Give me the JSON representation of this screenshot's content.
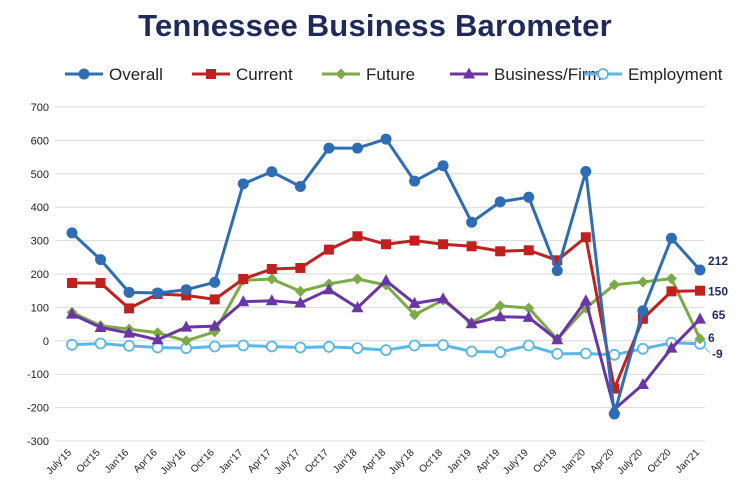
{
  "chart_data": {
    "type": "line",
    "title": "Tennessee Business Barometer",
    "xlabel": "",
    "ylabel": "",
    "ylim": [
      -300,
      700
    ],
    "yticks": [
      -300,
      -200,
      -100,
      0,
      100,
      200,
      300,
      400,
      500,
      600,
      700
    ],
    "grid": "horizontal",
    "legend_position": "top",
    "categories": [
      "July'15",
      "Oct'15",
      "Jan'16",
      "Apr'16",
      "July'16",
      "Oct'16",
      "Jan'17",
      "Apr'17",
      "July'17",
      "Oct'17",
      "Jan'18",
      "Apr'18",
      "July'18",
      "Oct'18",
      "Jan'19",
      "Apr'19",
      "July'19",
      "Oct'19",
      "Jan'20",
      "Apr'20",
      "July'20",
      "Oct'20",
      "Jan'21"
    ],
    "series": [
      {
        "name": "Overall",
        "color": "#2e6db4",
        "marker": "circle",
        "values": [
          323,
          243,
          145,
          143,
          153,
          175,
          470,
          506,
          462,
          577,
          577,
          604,
          478,
          524,
          355,
          416,
          430,
          210,
          507,
          -219,
          90,
          307,
          212
        ]
      },
      {
        "name": "Current",
        "color": "#c0211f",
        "marker": "square",
        "values": [
          173,
          173,
          97,
          140,
          136,
          124,
          185,
          215,
          218,
          273,
          313,
          289,
          300,
          289,
          283,
          268,
          271,
          241,
          310,
          -143,
          66,
          148,
          150
        ]
      },
      {
        "name": "Future",
        "color": "#7daa48",
        "marker": "diamond",
        "values": [
          85,
          45,
          35,
          24,
          0,
          27,
          181,
          185,
          148,
          170,
          185,
          167,
          78,
          122,
          54,
          105,
          98,
          5,
          98,
          168,
          176,
          186,
          6
        ]
      },
      {
        "name": "Business/Firm",
        "color": "#6a35a5",
        "marker": "triangle",
        "values": [
          80,
          40,
          23,
          3,
          41,
          44,
          117,
          120,
          113,
          153,
          99,
          180,
          112,
          126,
          51,
          72,
          70,
          3,
          120,
          -205,
          -131,
          -22,
          65
        ]
      },
      {
        "name": "Employment",
        "color": "#5bb7e3",
        "marker": "hollow-circle",
        "values": [
          -12,
          -8,
          -15,
          -20,
          -22,
          -17,
          -14,
          -17,
          -20,
          -18,
          -22,
          -28,
          -14,
          -13,
          -32,
          -34,
          -14,
          -39,
          -38,
          -42,
          -24,
          -6,
          -9
        ]
      }
    ],
    "end_labels": [
      "212",
      "150",
      "6",
      "65",
      "-9"
    ]
  }
}
